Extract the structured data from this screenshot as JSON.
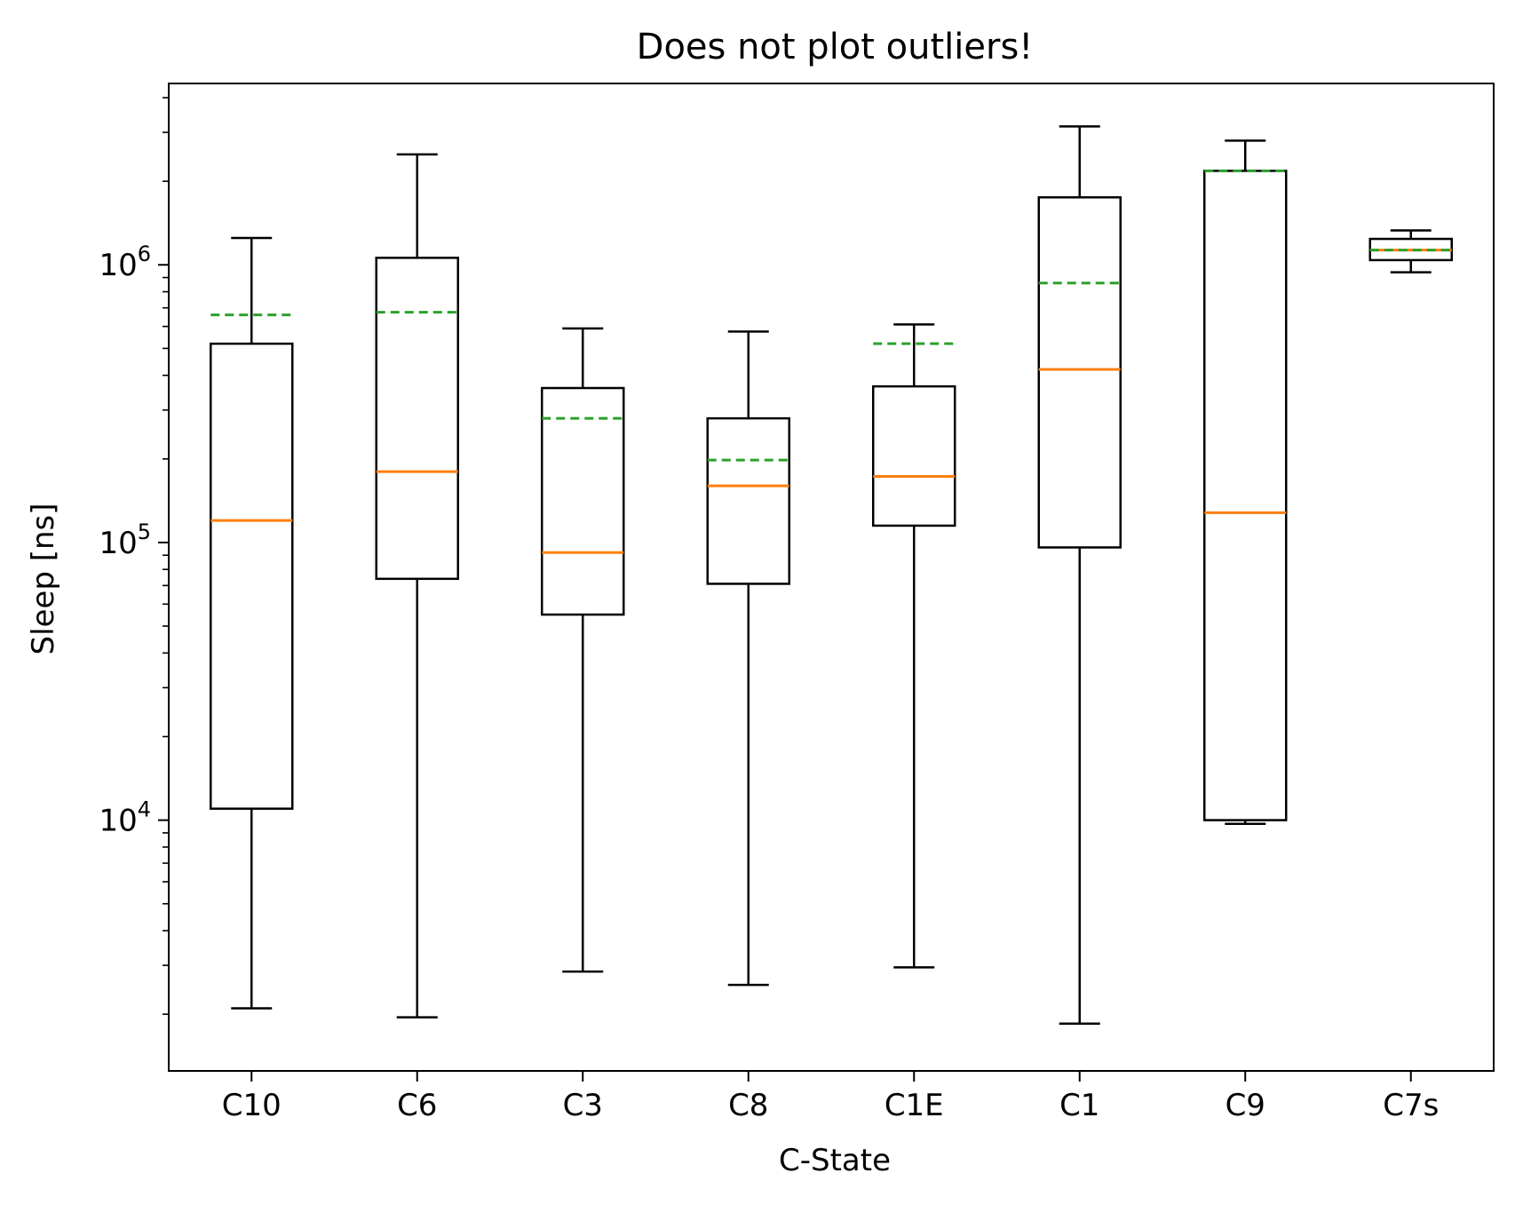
{
  "chart_data": {
    "type": "box",
    "title": "Does not plot outliers!",
    "xlabel": "C-State",
    "ylabel": "Sleep [ns]",
    "yscale": "log",
    "ylim": [
      1250,
      4500000
    ],
    "grid": false,
    "legend": "none",
    "y_tick_labels": [
      {
        "value": 10000,
        "base": "10",
        "exp": "4"
      },
      {
        "value": 100000,
        "base": "10",
        "exp": "5"
      },
      {
        "value": 1000000,
        "base": "10",
        "exp": "6"
      }
    ],
    "categories": [
      "C10",
      "C6",
      "C3",
      "C8",
      "C1E",
      "C1",
      "C9",
      "C7s"
    ],
    "boxes": [
      {
        "label": "C10",
        "whisker_low": 2100,
        "q1": 11000,
        "median": 120000,
        "q3": 520000,
        "whisker_high": 1250000,
        "mean": 660000
      },
      {
        "label": "C6",
        "whisker_low": 1950,
        "q1": 74000,
        "median": 180000,
        "q3": 1060000,
        "whisker_high": 2500000,
        "mean": 675000
      },
      {
        "label": "C3",
        "whisker_low": 2850,
        "q1": 55000,
        "median": 92000,
        "q3": 360000,
        "whisker_high": 590000,
        "mean": 280000
      },
      {
        "label": "C8",
        "whisker_low": 2550,
        "q1": 71000,
        "median": 160000,
        "q3": 280000,
        "whisker_high": 575000,
        "mean": 198000
      },
      {
        "label": "C1E",
        "whisker_low": 2950,
        "q1": 115000,
        "median": 173000,
        "q3": 365000,
        "whisker_high": 610000,
        "mean": 520000
      },
      {
        "label": "C1",
        "whisker_low": 1850,
        "q1": 96000,
        "median": 420000,
        "q3": 1750000,
        "whisker_high": 3150000,
        "mean": 860000
      },
      {
        "label": "C9",
        "whisker_low": 9700,
        "q1": 10000,
        "median": 128000,
        "q3": 2180000,
        "whisker_high": 2800000,
        "mean": 2180000
      },
      {
        "label": "C7s",
        "whisker_low": 940000,
        "q1": 1040000,
        "median": 1130000,
        "q3": 1240000,
        "whisker_high": 1330000,
        "mean": 1130000
      }
    ],
    "colors": {
      "box": "#000000",
      "median": "#ff7f0e",
      "mean": "#2ca02c"
    }
  }
}
